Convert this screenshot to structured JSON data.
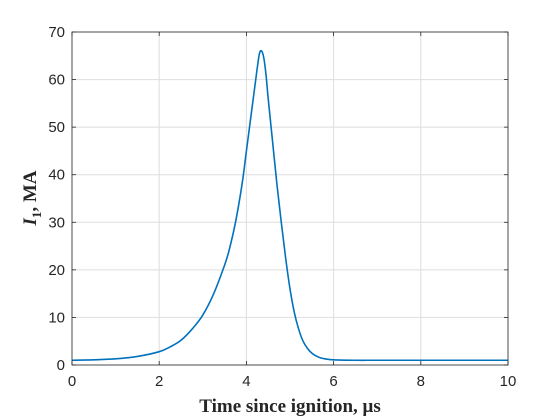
{
  "chart_data": {
    "type": "line",
    "title": "",
    "xlabel": "Time since ignition, μs",
    "ylabel": {
      "symbol": "I",
      "subscript": "1",
      "rest": ", MA"
    },
    "xlim": [
      0,
      10
    ],
    "ylim": [
      0,
      70
    ],
    "xticks": [
      0,
      2,
      4,
      6,
      8,
      10
    ],
    "yticks": [
      0,
      10,
      20,
      30,
      40,
      50,
      60,
      70
    ],
    "grid": true,
    "line_color": "#0072bd",
    "series": [
      {
        "x": [
          0,
          0.5,
          1,
          1.5,
          2,
          2.25,
          2.5,
          2.75,
          3,
          3.25,
          3.5,
          3.6,
          3.75,
          3.9,
          4,
          4.1,
          4.2,
          4.25,
          4.3,
          4.35,
          4.4,
          4.45,
          4.5,
          4.6,
          4.7,
          4.8,
          4.9,
          5,
          5.1,
          5.2,
          5.3,
          5.4,
          5.5,
          5.6,
          5.7,
          5.8,
          6,
          6.5,
          7,
          8,
          9,
          10
        ],
        "y": [
          1,
          1.1,
          1.3,
          1.8,
          2.8,
          3.8,
          5.2,
          7.5,
          10.5,
          15,
          21,
          24,
          30,
          38,
          45,
          52,
          59,
          62.5,
          65.5,
          66,
          64.5,
          61,
          56,
          47,
          38,
          30,
          22.5,
          16,
          11,
          7.5,
          5,
          3.5,
          2.5,
          1.9,
          1.5,
          1.3,
          1.1,
          1,
          1,
          1,
          1,
          1
        ]
      }
    ]
  }
}
